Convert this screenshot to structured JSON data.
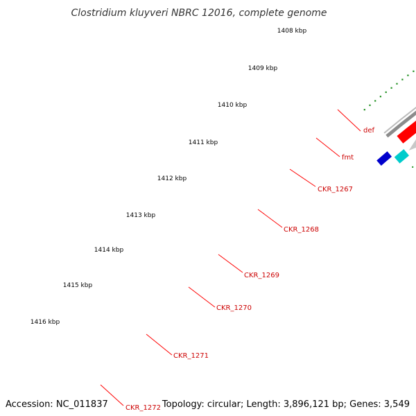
{
  "title": "Clostridium kluyveri NBRC 12016, complete genome",
  "accession": "Accession: NC_011837",
  "topology": "Topology: circular; Length: 3,896,121 bp; Genes: 3,549",
  "ticks": [
    "1408 kbp",
    "1409 kbp",
    "1410 kbp",
    "1411 kbp",
    "1412 kbp",
    "1413 kbp",
    "1414 kbp",
    "1415 kbp",
    "1416 kbp"
  ],
  "genes": [
    "def",
    "fmt",
    "CKR_1267",
    "CKR_1268",
    "CKR_1269",
    "CKR_1270",
    "CKR_1271",
    "CKR_1272"
  ],
  "colors": {
    "backbone": "#8c8c8c",
    "cds": "#ff0000",
    "cds_light": "#f08080",
    "cds_gray": "#c8c8c8",
    "cds_green": "#33cc33",
    "cds_magenta": "#ff1493",
    "tick_minor": "#1f8f1f",
    "tick_major": "#2e7d2e",
    "label_gene": "#cc0000",
    "label_tick": "#000000",
    "callout": "#ff0000"
  }
}
